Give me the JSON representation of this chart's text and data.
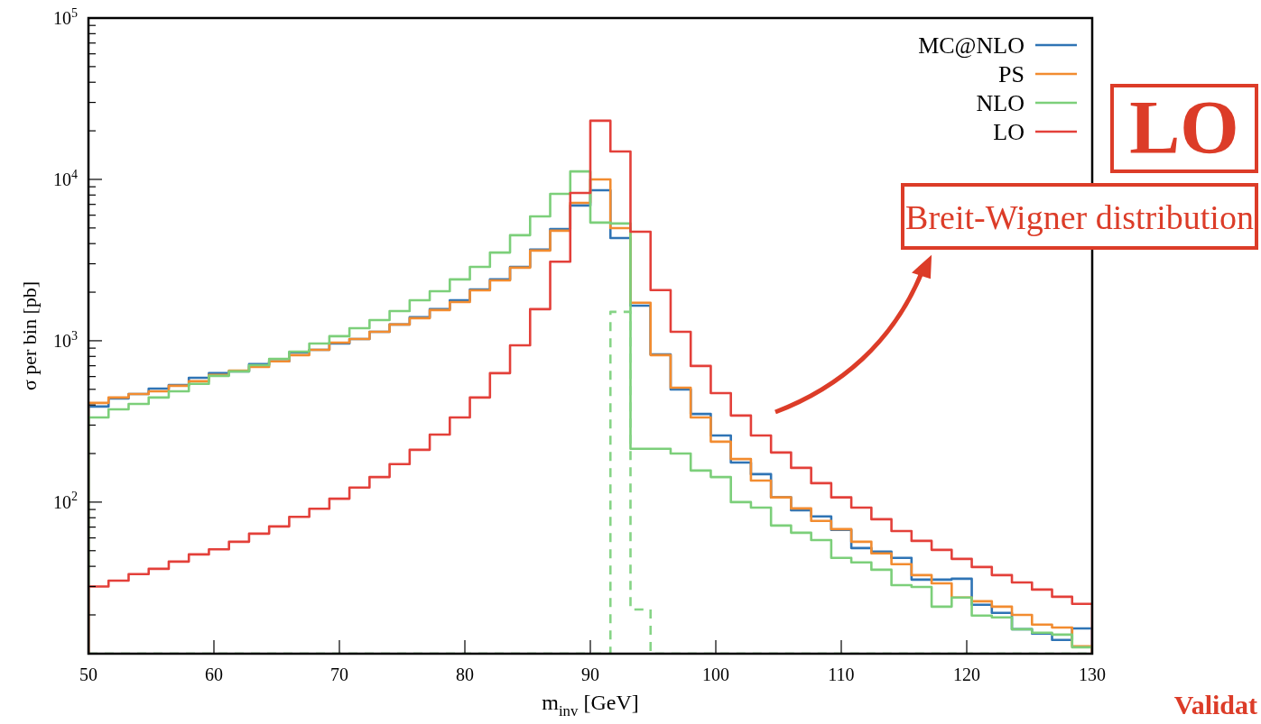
{
  "chart_data": {
    "type": "histogram",
    "xlabel": "m$_{inv}$ [GeV]",
    "ylabel": "σ per bin [pb]",
    "bins": [
      50,
      51.6,
      53.2,
      54.8,
      56.4,
      58,
      59.6,
      61.2,
      62.8,
      64.4,
      66,
      67.6,
      69.2,
      70.8,
      72.4,
      74,
      75.6,
      77.2,
      78.8,
      80.4,
      82,
      83.6,
      85.2,
      86.8,
      88.4,
      90,
      91.6,
      93.2,
      94.8,
      96.4,
      98,
      99.6,
      101.2,
      102.8,
      104.4,
      106,
      107.6,
      109.2,
      110.8,
      112.4,
      114,
      115.6,
      117.2,
      118.8,
      120.4,
      122,
      123.6,
      125.2,
      126.8,
      128.4,
      130
    ],
    "series": [
      {
        "name": "MC@NLO",
        "color": "#2f74b5",
        "values": [
          391,
          439,
          468,
          505,
          532,
          590,
          630,
          646,
          716,
          745,
          846,
          879,
          962,
          1026,
          1137,
          1261,
          1398,
          1570,
          1784,
          2080,
          2400,
          2870,
          3670,
          4930,
          6890,
          8570,
          4330,
          1650,
          824,
          499,
          352,
          259,
          176,
          149,
          107,
          89,
          81.5,
          67.2,
          51.9,
          49.3,
          45.1,
          33.1,
          33.1,
          33.5,
          23.1,
          20.6,
          16.3,
          15.3,
          14.0,
          16.5
        ]
      },
      {
        "name": "PS",
        "color": "#f28c30",
        "values": [
          412,
          445,
          468,
          486,
          526,
          561,
          614,
          654,
          689,
          745,
          815,
          879,
          974,
          1026,
          1137,
          1261,
          1380,
          1549,
          1738,
          2055,
          2367,
          2837,
          3622,
          4808,
          7160,
          10000,
          4990,
          1720,
          815,
          512,
          335,
          237,
          185,
          136,
          107,
          91.4,
          76.4,
          68,
          56.8,
          48.1,
          41.2,
          35.3,
          31.4,
          25.6,
          24.3,
          22.5,
          20,
          17.4,
          16.7,
          12.8
        ]
      },
      {
        "name": "NLO",
        "color": "#7ccf7a",
        "values": [
          335,
          376,
          406,
          445,
          486,
          540,
          606,
          646,
          706,
          773,
          857,
          962,
          1067,
          1197,
          1344,
          1528,
          1784,
          2027,
          2400,
          2870,
          3520,
          4510,
          5900,
          8140,
          11200,
          5400,
          5330,
          214,
          214,
          200,
          157,
          143,
          100,
          92.5,
          71.6,
          64.6,
          58.2,
          45.1,
          42.3,
          38.1,
          30.6,
          29.8,
          22.5,
          25.6,
          19.8,
          19.3,
          16.3,
          15.5,
          15.1,
          12.6
        ]
      },
      {
        "name": "LO",
        "color": "#e3403a",
        "values": [
          30,
          32.6,
          35.8,
          38.6,
          42.8,
          47.4,
          51,
          56.8,
          63.8,
          70.7,
          81,
          91,
          105,
          123,
          143,
          172,
          211,
          262,
          335,
          445,
          630,
          937,
          1570,
          3090,
          8240,
          23100,
          14900,
          4740,
          2060,
          1137,
          698,
          474,
          344,
          259,
          203,
          163,
          131,
          107,
          92.5,
          78.3,
          66.2,
          57.5,
          50.6,
          44.5,
          39.6,
          35.3,
          31.8,
          28.7,
          25.9,
          23.4
        ]
      },
      {
        "color": "#86d486",
        "line_style": "dashed",
        "values": [
          null,
          null,
          null,
          null,
          null,
          null,
          null,
          null,
          null,
          null,
          null,
          null,
          null,
          null,
          null,
          null,
          null,
          null,
          null,
          null,
          null,
          null,
          null,
          null,
          null,
          null,
          1510,
          21.6,
          null,
          null,
          null,
          null,
          null,
          null,
          null,
          null,
          null,
          null,
          null,
          null,
          null,
          null,
          null,
          null,
          null,
          null,
          null,
          null,
          null,
          null
        ]
      }
    ],
    "log": true,
    "xlim": [
      50,
      130
    ],
    "xticks": [
      50,
      60,
      70,
      80,
      90,
      100,
      110,
      120,
      130
    ],
    "ylim": [
      11.5,
      100000
    ],
    "yticks": [
      {
        "value": 20,
        "label": null
      },
      {
        "value": 30,
        "label": null
      },
      {
        "value": 40,
        "label": null
      },
      {
        "value": 50,
        "label": null
      },
      {
        "value": 60,
        "label": null
      },
      {
        "value": 70,
        "label": null
      },
      {
        "value": 80,
        "label": null
      },
      {
        "value": 90,
        "label": null
      },
      {
        "value": 100,
        "label": "10$^{2}$"
      },
      {
        "value": 200,
        "label": null
      },
      {
        "value": 300,
        "label": null
      },
      {
        "value": 400,
        "label": null
      },
      {
        "value": 500,
        "label": null
      },
      {
        "value": 600,
        "label": null
      },
      {
        "value": 700,
        "label": null
      },
      {
        "value": 800,
        "label": null
      },
      {
        "value": 900,
        "label": null
      },
      {
        "value": 1000,
        "label": "10$^{3}$"
      },
      {
        "value": 2000,
        "label": null
      },
      {
        "value": 3000,
        "label": null
      },
      {
        "value": 4000,
        "label": null
      },
      {
        "value": 5000,
        "label": null
      },
      {
        "value": 6000,
        "label": null
      },
      {
        "value": 7000,
        "label": null
      },
      {
        "value": 8000,
        "label": null
      },
      {
        "value": 9000,
        "label": null
      },
      {
        "value": 10000,
        "label": "10$^{4}$"
      },
      {
        "value": 20000,
        "label": null
      },
      {
        "value": 30000,
        "label": null
      },
      {
        "value": 40000,
        "label": null
      },
      {
        "value": 50000,
        "label": null
      },
      {
        "value": 60000,
        "label": null
      },
      {
        "value": 70000,
        "label": null
      },
      {
        "value": 80000,
        "label": null
      },
      {
        "value": 90000,
        "label": null
      },
      {
        "value": 100000,
        "label": "10$^{5}$"
      }
    ],
    "legend": "top right",
    "annotations": [
      "LO",
      "Breit-Wigner distribution",
      "Validat"
    ]
  }
}
